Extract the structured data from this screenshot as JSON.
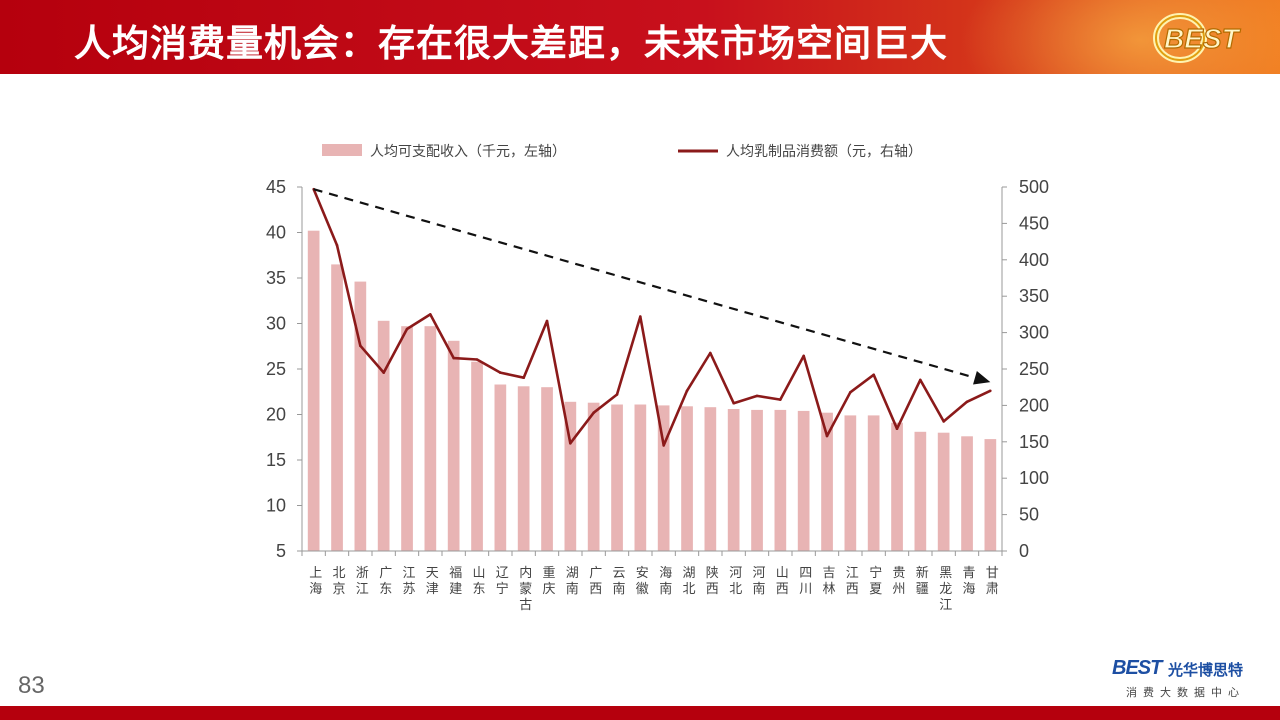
{
  "header": {
    "title": "人均消费量机会：存在很大差距，未来市场空间巨大",
    "logo_text": "BEST"
  },
  "footer": {
    "page_number": "83",
    "brand_badge": "BEST",
    "brand_name": "光华博思特",
    "brand_sub": "消费大数据中心"
  },
  "colors": {
    "bar": "#e8b4b4",
    "line": "#8b1a1a",
    "header_red": "#b5000d",
    "trend_arrow": "#111111"
  },
  "icons": {
    "arrow": "dashed-trend-arrow-icon"
  },
  "chart_data": {
    "type": "bar",
    "categories": [
      "上海",
      "北京",
      "浙江",
      "广东",
      "江苏",
      "天津",
      "福建",
      "山东",
      "辽宁",
      "内蒙古",
      "重庆",
      "湖南",
      "广西",
      "云南",
      "安徽",
      "海南",
      "湖北",
      "陕西",
      "河北",
      "河南",
      "山西",
      "四川",
      "吉林",
      "江西",
      "宁夏",
      "贵州",
      "新疆",
      "黑龙江",
      "青海",
      "甘肃"
    ],
    "series": [
      {
        "name": "人均可支配收入（千元，左轴）",
        "type": "bar",
        "axis": "left",
        "values": [
          40.2,
          36.5,
          34.6,
          30.3,
          29.7,
          29.7,
          28.1,
          25.8,
          23.3,
          23.1,
          23.0,
          21.4,
          21.3,
          21.1,
          21.1,
          21.0,
          20.9,
          20.8,
          20.6,
          20.5,
          20.5,
          20.4,
          20.2,
          19.9,
          19.9,
          19.1,
          18.1,
          18.0,
          17.6,
          17.3
        ]
      },
      {
        "name": "人均乳制品消费额（元，右轴）",
        "type": "line",
        "axis": "right",
        "values": [
          497,
          420,
          282,
          245,
          305,
          325,
          265,
          263,
          245,
          238,
          316,
          148,
          190,
          215,
          322,
          145,
          220,
          272,
          203,
          213,
          208,
          268,
          158,
          218,
          242,
          168,
          235,
          178,
          205,
          220
        ]
      }
    ],
    "ylim_left": [
      5,
      45
    ],
    "yticks_left": [
      5,
      10,
      15,
      20,
      25,
      30,
      35,
      40,
      45
    ],
    "ylim_right": [
      0,
      500
    ],
    "yticks_right": [
      0,
      50,
      100,
      150,
      200,
      250,
      300,
      350,
      400,
      450,
      500
    ],
    "trend_arrow": {
      "from": {
        "category": "上海",
        "right_value": 497
      },
      "to": {
        "category": "甘肃",
        "right_value": 232
      }
    },
    "legend_position": "top",
    "grid": false
  }
}
